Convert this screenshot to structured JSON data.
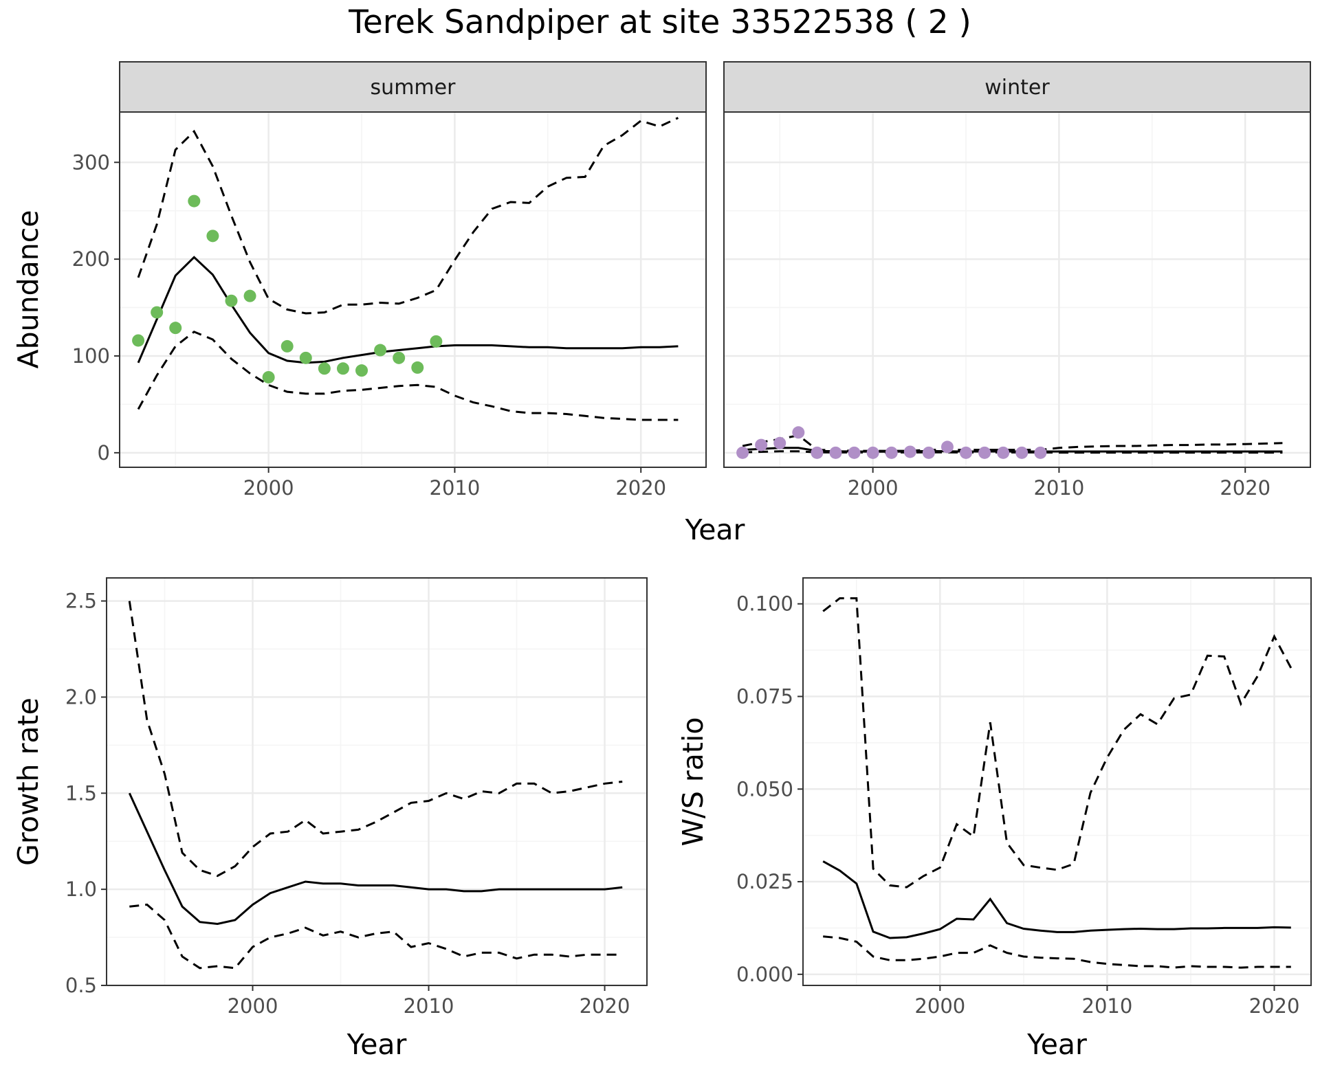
{
  "title": "Terek Sandpiper at site 33522538 ( 2 )",
  "colors": {
    "summer_points": "#6dbb5a",
    "winter_points": "#b08fc7",
    "lines": "#000000",
    "grid_major": "#ebebeb",
    "grid_minor": "#f4f4f4",
    "strip_fill": "#d9d9d9",
    "panel_border": "#333333"
  },
  "chart_data": [
    {
      "type": "line",
      "id": "abundance",
      "facet_strips": [
        "summer",
        "winter"
      ],
      "xlabel": "Year",
      "ylabel": "Abundance",
      "xlim": [
        1992,
        2023.5
      ],
      "ylim": [
        -15,
        352
      ],
      "x_ticks": [
        2000,
        2010,
        2020
      ],
      "y_ticks": [
        0,
        100,
        200,
        300
      ],
      "grid": true,
      "facets": [
        {
          "name": "summer",
          "point_color": "summer_points",
          "observed": {
            "x": [
              1993,
              1994,
              1995,
              1996,
              1997,
              1998,
              1999,
              2000,
              2001,
              2002,
              2003,
              2004,
              2005,
              2006,
              2007,
              2008,
              2009
            ],
            "y": [
              116,
              145,
              129,
              260,
              224,
              157,
              162,
              78,
              110,
              98,
              87,
              87,
              85,
              106,
              98,
              88,
              115
            ]
          },
          "estimate": {
            "x": [
              1993,
              1994,
              1995,
              1996,
              1997,
              1998,
              1999,
              2000,
              2001,
              2002,
              2003,
              2004,
              2005,
              2006,
              2007,
              2008,
              2009,
              2010,
              2011,
              2012,
              2013,
              2014,
              2015,
              2016,
              2017,
              2018,
              2019,
              2020,
              2021,
              2022
            ],
            "y": [
              93,
              138,
              183,
              202,
              184,
              153,
              124,
              103,
              95,
              93,
              94,
              98,
              101,
              104,
              106,
              108,
              110,
              111,
              111,
              111,
              110,
              109,
              109,
              108,
              108,
              108,
              108,
              109,
              109,
              110
            ]
          },
          "upper": {
            "x": [
              1993,
              1994,
              1995,
              1996,
              1997,
              1998,
              1999,
              2000,
              2001,
              2002,
              2003,
              2004,
              2005,
              2006,
              2007,
              2008,
              2009,
              2010,
              2011,
              2012,
              2013,
              2014,
              2015,
              2016,
              2017,
              2018,
              2019,
              2020,
              2021,
              2022
            ],
            "y": [
              181,
              236,
              313,
              332,
              296,
              245,
              197,
              159,
              148,
              144,
              145,
              153,
              153,
              155,
              154,
              160,
              168,
              199,
              228,
              252,
              259,
              258,
              275,
              284,
              285,
              317,
              328,
              343,
              337,
              346
            ]
          },
          "lower": {
            "x": [
              1993,
              1994,
              1995,
              1996,
              1997,
              1998,
              1999,
              2000,
              2001,
              2002,
              2003,
              2004,
              2005,
              2006,
              2007,
              2008,
              2009,
              2010,
              2011,
              2012,
              2013,
              2014,
              2015,
              2016,
              2017,
              2018,
              2019,
              2020,
              2021,
              2022
            ],
            "y": [
              45,
              80,
              110,
              125,
              117,
              97,
              82,
              70,
              63,
              61,
              61,
              64,
              65,
              67,
              69,
              70,
              68,
              59,
              52,
              48,
              43,
              41,
              41,
              40,
              38,
              36,
              35,
              34,
              34,
              34
            ]
          }
        },
        {
          "name": "winter",
          "point_color": "winter_points",
          "observed": {
            "x": [
              1993,
              1994,
              1995,
              1996,
              1997,
              1998,
              1999,
              2000,
              2001,
              2002,
              2003,
              2004,
              2005,
              2006,
              2007,
              2008,
              2009
            ],
            "y": [
              0,
              8,
              10,
              21,
              0,
              0,
              0,
              0,
              0,
              1,
              0,
              6,
              0,
              0,
              0,
              0,
              0
            ]
          },
          "estimate": {
            "x": [
              1993,
              1994,
              1995,
              1996,
              1997,
              1998,
              1999,
              2000,
              2001,
              2002,
              2003,
              2004,
              2005,
              2006,
              2007,
              2008,
              2009,
              2010,
              2011,
              2012,
              2013,
              2014,
              2015,
              2016,
              2017,
              2018,
              2019,
              2020,
              2021,
              2022
            ],
            "y": [
              3,
              4,
              5,
              5,
              2,
              1.5,
              1.3,
              1.2,
              1.2,
              1.3,
              1.8,
              1.5,
              1.3,
              1.3,
              1.3,
              1.3,
              1.3,
              1.3,
              1.3,
              1.3,
              1.3,
              1.3,
              1.3,
              1.3,
              1.3,
              1.3,
              1.3,
              1.3,
              1.3,
              1.3
            ]
          },
          "upper": {
            "x": [
              1993,
              1994,
              1995,
              1996,
              1997,
              1998,
              1999,
              2000,
              2001,
              2002,
              2003,
              2004,
              2005,
              2006,
              2007,
              2008,
              2009,
              2010,
              2011,
              2012,
              2013,
              2014,
              2015,
              2016,
              2017,
              2018,
              2019,
              2020,
              2021,
              2022
            ],
            "y": [
              7,
              11,
              14,
              18,
              3,
              2.5,
              2,
              2,
              2,
              2,
              3,
              3,
              3,
              3,
              3,
              3,
              3,
              5,
              6,
              6.5,
              7,
              7,
              7.5,
              8,
              8,
              8.5,
              8.5,
              9,
              9.5,
              10
            ]
          },
          "lower": {
            "x": [
              1993,
              1994,
              1995,
              1996,
              1997,
              1998,
              1999,
              2000,
              2001,
              2002,
              2003,
              2004,
              2005,
              2006,
              2007,
              2008,
              2009,
              2010,
              2011,
              2012,
              2013,
              2014,
              2015,
              2016,
              2017,
              2018,
              2019,
              2020,
              2021,
              2022
            ],
            "y": [
              0.5,
              1,
              1.5,
              1.5,
              0.5,
              0.3,
              0.3,
              0.3,
              0.3,
              0.3,
              0.5,
              0.4,
              0.3,
              0.3,
              0.3,
              0.3,
              0.3,
              0.2,
              0.2,
              0.2,
              0.2,
              0.2,
              0.2,
              0.2,
              0.2,
              0.2,
              0.2,
              0.2,
              0.2,
              0.2
            ]
          }
        }
      ]
    },
    {
      "type": "line",
      "id": "growth",
      "xlabel": "Year",
      "ylabel": "Growth rate",
      "xlim": [
        1991.7,
        2022.4
      ],
      "ylim": [
        0.5,
        2.62
      ],
      "x_ticks": [
        2000,
        2010,
        2020
      ],
      "y_ticks": [
        0.5,
        1.0,
        1.5,
        2.0,
        2.5
      ],
      "y_tick_labels": [
        "0.5",
        "1.0",
        "1.5",
        "2.0",
        "2.5"
      ],
      "grid": true,
      "estimate": {
        "x": [
          1993,
          1994,
          1995,
          1996,
          1997,
          1998,
          1999,
          2000,
          2001,
          2002,
          2003,
          2004,
          2005,
          2006,
          2007,
          2008,
          2009,
          2010,
          2011,
          2012,
          2013,
          2014,
          2015,
          2016,
          2017,
          2018,
          2019,
          2020,
          2021
        ],
        "y": [
          1.5,
          1.3,
          1.1,
          0.91,
          0.83,
          0.82,
          0.84,
          0.92,
          0.98,
          1.01,
          1.04,
          1.03,
          1.03,
          1.02,
          1.02,
          1.02,
          1.01,
          1.0,
          1.0,
          0.99,
          0.99,
          1.0,
          1.0,
          1.0,
          1.0,
          1.0,
          1.0,
          1.0,
          1.01
        ]
      },
      "upper": {
        "x": [
          1993,
          1994,
          1995,
          1996,
          1997,
          1998,
          1999,
          2000,
          2001,
          2002,
          2003,
          2004,
          2005,
          2006,
          2007,
          2008,
          2009,
          2010,
          2011,
          2012,
          2013,
          2014,
          2015,
          2016,
          2017,
          2018,
          2019,
          2020,
          2021
        ],
        "y": [
          2.5,
          1.88,
          1.6,
          1.19,
          1.1,
          1.07,
          1.12,
          1.22,
          1.29,
          1.3,
          1.36,
          1.29,
          1.3,
          1.31,
          1.35,
          1.4,
          1.45,
          1.46,
          1.5,
          1.47,
          1.51,
          1.5,
          1.55,
          1.55,
          1.5,
          1.51,
          1.53,
          1.55,
          1.56
        ]
      },
      "lower": {
        "x": [
          1993,
          1994,
          1995,
          1996,
          1997,
          1998,
          1999,
          2000,
          2001,
          2002,
          2003,
          2004,
          2005,
          2006,
          2007,
          2008,
          2009,
          2010,
          2011,
          2012,
          2013,
          2014,
          2015,
          2016,
          2017,
          2018,
          2019,
          2020,
          2021
        ],
        "y": [
          0.91,
          0.92,
          0.84,
          0.65,
          0.59,
          0.6,
          0.59,
          0.7,
          0.75,
          0.77,
          0.8,
          0.76,
          0.78,
          0.75,
          0.77,
          0.78,
          0.7,
          0.72,
          0.69,
          0.65,
          0.67,
          0.67,
          0.64,
          0.66,
          0.66,
          0.65,
          0.66,
          0.66,
          0.66
        ]
      }
    },
    {
      "type": "line",
      "id": "ratio",
      "xlabel": "Year",
      "ylabel": "W/S ratio",
      "xlim": [
        1991.8,
        2022.2
      ],
      "ylim": [
        -0.003,
        0.107
      ],
      "x_ticks": [
        2000,
        2010,
        2020
      ],
      "y_ticks": [
        0,
        0.025,
        0.05,
        0.075,
        0.1
      ],
      "y_tick_labels": [
        "0.000",
        "0.025",
        "0.050",
        "0.075",
        "0.100"
      ],
      "grid": true,
      "estimate": {
        "x": [
          1993,
          1994,
          1995,
          1996,
          1997,
          1998,
          1999,
          2000,
          2001,
          2002,
          2003,
          2004,
          2005,
          2006,
          2007,
          2008,
          2009,
          2010,
          2011,
          2012,
          2013,
          2014,
          2015,
          2016,
          2017,
          2018,
          2019,
          2020,
          2021
        ],
        "y": [
          0.0305,
          0.028,
          0.0245,
          0.0115,
          0.0098,
          0.01,
          0.011,
          0.0122,
          0.015,
          0.0148,
          0.0203,
          0.0138,
          0.0123,
          0.0118,
          0.0114,
          0.0114,
          0.0118,
          0.012,
          0.0122,
          0.0123,
          0.0122,
          0.0122,
          0.0124,
          0.0124,
          0.0125,
          0.0125,
          0.0125,
          0.0127,
          0.0126
        ]
      },
      "upper": {
        "x": [
          1993,
          1994,
          1995,
          1996,
          1997,
          1998,
          1999,
          2000,
          2001,
          2002,
          2003,
          2004,
          2005,
          2006,
          2007,
          2008,
          2009,
          2010,
          2011,
          2012,
          2013,
          2014,
          2015,
          2016,
          2017,
          2018,
          2019,
          2020,
          2021
        ],
        "y": [
          0.098,
          0.1015,
          0.1015,
          0.0285,
          0.024,
          0.0235,
          0.0265,
          0.0288,
          0.0405,
          0.0372,
          0.068,
          0.0355,
          0.0295,
          0.0288,
          0.0282,
          0.0298,
          0.049,
          0.0585,
          0.066,
          0.0702,
          0.0675,
          0.0745,
          0.0755,
          0.086,
          0.0858,
          0.073,
          0.0805,
          0.0912,
          0.0827
        ]
      },
      "lower": {
        "x": [
          1993,
          1994,
          1995,
          1996,
          1997,
          1998,
          1999,
          2000,
          2001,
          2002,
          2003,
          2004,
          2005,
          2006,
          2007,
          2008,
          2009,
          2010,
          2011,
          2012,
          2013,
          2014,
          2015,
          2016,
          2017,
          2018,
          2019,
          2020,
          2021
        ],
        "y": [
          0.0102,
          0.0098,
          0.0088,
          0.0048,
          0.0038,
          0.0038,
          0.0042,
          0.0048,
          0.0058,
          0.0058,
          0.0078,
          0.0058,
          0.0048,
          0.0045,
          0.0043,
          0.0042,
          0.0033,
          0.0028,
          0.0025,
          0.0022,
          0.0022,
          0.0018,
          0.0022,
          0.002,
          0.002,
          0.0018,
          0.002,
          0.002,
          0.002
        ]
      }
    }
  ]
}
